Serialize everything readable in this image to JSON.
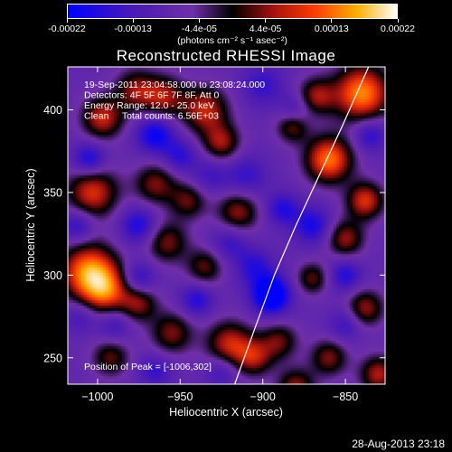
{
  "chart_data": {
    "type": "heatmap",
    "title": "Reconstructed RHESSI Image",
    "xlabel": "Heliocentric X (arcsec)",
    "ylabel": "Heliocentric Y (arcsec)",
    "xlim": [
      -1018,
      -826
    ],
    "ylim": [
      234,
      426
    ],
    "x_ticks": [
      -1000,
      -950,
      -900,
      -850
    ],
    "y_ticks": [
      250,
      300,
      350,
      400
    ],
    "colorbar": {
      "ticks": [
        "-0.00022",
        "-0.00013",
        "-4.4e-05",
        "4.4e-05",
        "0.00013",
        "0.00022"
      ],
      "units": "(photons cm⁻² s⁻¹ asec⁻²)",
      "range": [
        -0.00022,
        0.00022
      ]
    },
    "annotations": [
      "19-Sep-2011 23:04:58.000 to 23:08:24.000",
      "Detectors: 4F 5F 6F 7F 8F, Att 0",
      "Energy Range: 12.0 - 25.0 keV",
      "Clean     Total counts: 6.56E+03"
    ],
    "peak_label": "Position of Peak = [-1006,302]",
    "limb_curve": [
      [
        -917,
        234
      ],
      [
        -904,
        270
      ],
      [
        -893,
        300
      ],
      [
        -880,
        330
      ],
      [
        -866,
        360
      ],
      [
        -852,
        390
      ],
      [
        -836,
        426
      ]
    ],
    "blobs": [
      {
        "x": -1005,
        "y": 302,
        "v": 1.0,
        "s": 12
      },
      {
        "x": -995,
        "y": 290,
        "v": 0.7,
        "s": 10
      },
      {
        "x": -1003,
        "y": 350,
        "v": 0.75,
        "s": 11
      },
      {
        "x": -997,
        "y": 395,
        "v": 0.7,
        "s": 9
      },
      {
        "x": -977,
        "y": 412,
        "v": 0.55,
        "s": 9
      },
      {
        "x": -960,
        "y": 408,
        "v": 0.6,
        "s": 9
      },
      {
        "x": -935,
        "y": 400,
        "v": 0.7,
        "s": 10
      },
      {
        "x": -925,
        "y": 380,
        "v": 0.6,
        "s": 8
      },
      {
        "x": -965,
        "y": 355,
        "v": 0.55,
        "s": 9
      },
      {
        "x": -945,
        "y": 345,
        "v": 0.5,
        "s": 8
      },
      {
        "x": -915,
        "y": 338,
        "v": 0.6,
        "s": 9
      },
      {
        "x": -958,
        "y": 320,
        "v": 0.55,
        "s": 9
      },
      {
        "x": -935,
        "y": 305,
        "v": 0.5,
        "s": 8
      },
      {
        "x": -975,
        "y": 283,
        "v": 0.55,
        "s": 8
      },
      {
        "x": -955,
        "y": 265,
        "v": 0.55,
        "s": 9
      },
      {
        "x": -920,
        "y": 258,
        "v": 0.7,
        "s": 10
      },
      {
        "x": -890,
        "y": 260,
        "v": 0.5,
        "s": 8
      },
      {
        "x": -905,
        "y": 250,
        "v": 0.55,
        "s": 8
      },
      {
        "x": -992,
        "y": 250,
        "v": 0.5,
        "s": 8
      },
      {
        "x": -860,
        "y": 370,
        "v": 0.95,
        "s": 10
      },
      {
        "x": -868,
        "y": 408,
        "v": 0.6,
        "s": 8
      },
      {
        "x": -840,
        "y": 410,
        "v": 1.0,
        "s": 12
      },
      {
        "x": -838,
        "y": 345,
        "v": 0.75,
        "s": 8
      },
      {
        "x": -850,
        "y": 322,
        "v": 0.6,
        "s": 8
      },
      {
        "x": -838,
        "y": 280,
        "v": 0.6,
        "s": 8
      },
      {
        "x": -870,
        "y": 298,
        "v": 0.5,
        "s": 7
      },
      {
        "x": -880,
        "y": 232,
        "v": 0.6,
        "s": 8
      },
      {
        "x": -860,
        "y": 250,
        "v": 0.55,
        "s": 8
      },
      {
        "x": -830,
        "y": 240,
        "v": 0.65,
        "s": 8
      },
      {
        "x": -882,
        "y": 390,
        "v": 0.55,
        "s": 7
      },
      {
        "x": -975,
        "y": 330,
        "v": -0.5,
        "s": 8
      },
      {
        "x": -965,
        "y": 385,
        "v": -0.6,
        "s": 8
      },
      {
        "x": -950,
        "y": 372,
        "v": -0.4,
        "s": 7
      },
      {
        "x": -1012,
        "y": 330,
        "v": -0.45,
        "s": 7
      },
      {
        "x": -1005,
        "y": 370,
        "v": -0.55,
        "s": 7
      },
      {
        "x": -975,
        "y": 298,
        "v": -0.45,
        "s": 7
      },
      {
        "x": -940,
        "y": 285,
        "v": -0.45,
        "s": 7
      },
      {
        "x": -895,
        "y": 288,
        "v": -0.9,
        "s": 8
      },
      {
        "x": -870,
        "y": 330,
        "v": -0.5,
        "s": 8
      },
      {
        "x": -888,
        "y": 340,
        "v": -0.45,
        "s": 7
      },
      {
        "x": -905,
        "y": 305,
        "v": -0.4,
        "s": 8
      },
      {
        "x": -920,
        "y": 320,
        "v": -0.35,
        "s": 8
      },
      {
        "x": -880,
        "y": 400,
        "v": -0.35,
        "s": 7
      },
      {
        "x": -900,
        "y": 415,
        "v": -0.35,
        "s": 9
      },
      {
        "x": -910,
        "y": 360,
        "v": -0.35,
        "s": 9
      },
      {
        "x": -932,
        "y": 360,
        "v": -0.3,
        "s": 8
      },
      {
        "x": -850,
        "y": 300,
        "v": -0.45,
        "s": 7
      },
      {
        "x": -850,
        "y": 270,
        "v": -0.35,
        "s": 7
      },
      {
        "x": -835,
        "y": 385,
        "v": -0.45,
        "s": 7
      },
      {
        "x": -990,
        "y": 270,
        "v": -0.35,
        "s": 7
      },
      {
        "x": -965,
        "y": 242,
        "v": -0.35,
        "s": 7
      },
      {
        "x": -1010,
        "y": 275,
        "v": -0.3,
        "s": 7
      },
      {
        "x": -925,
        "y": 242,
        "v": -0.35,
        "s": 7
      }
    ]
  },
  "footer": {
    "date": "28-Aug-2013 23:18"
  }
}
